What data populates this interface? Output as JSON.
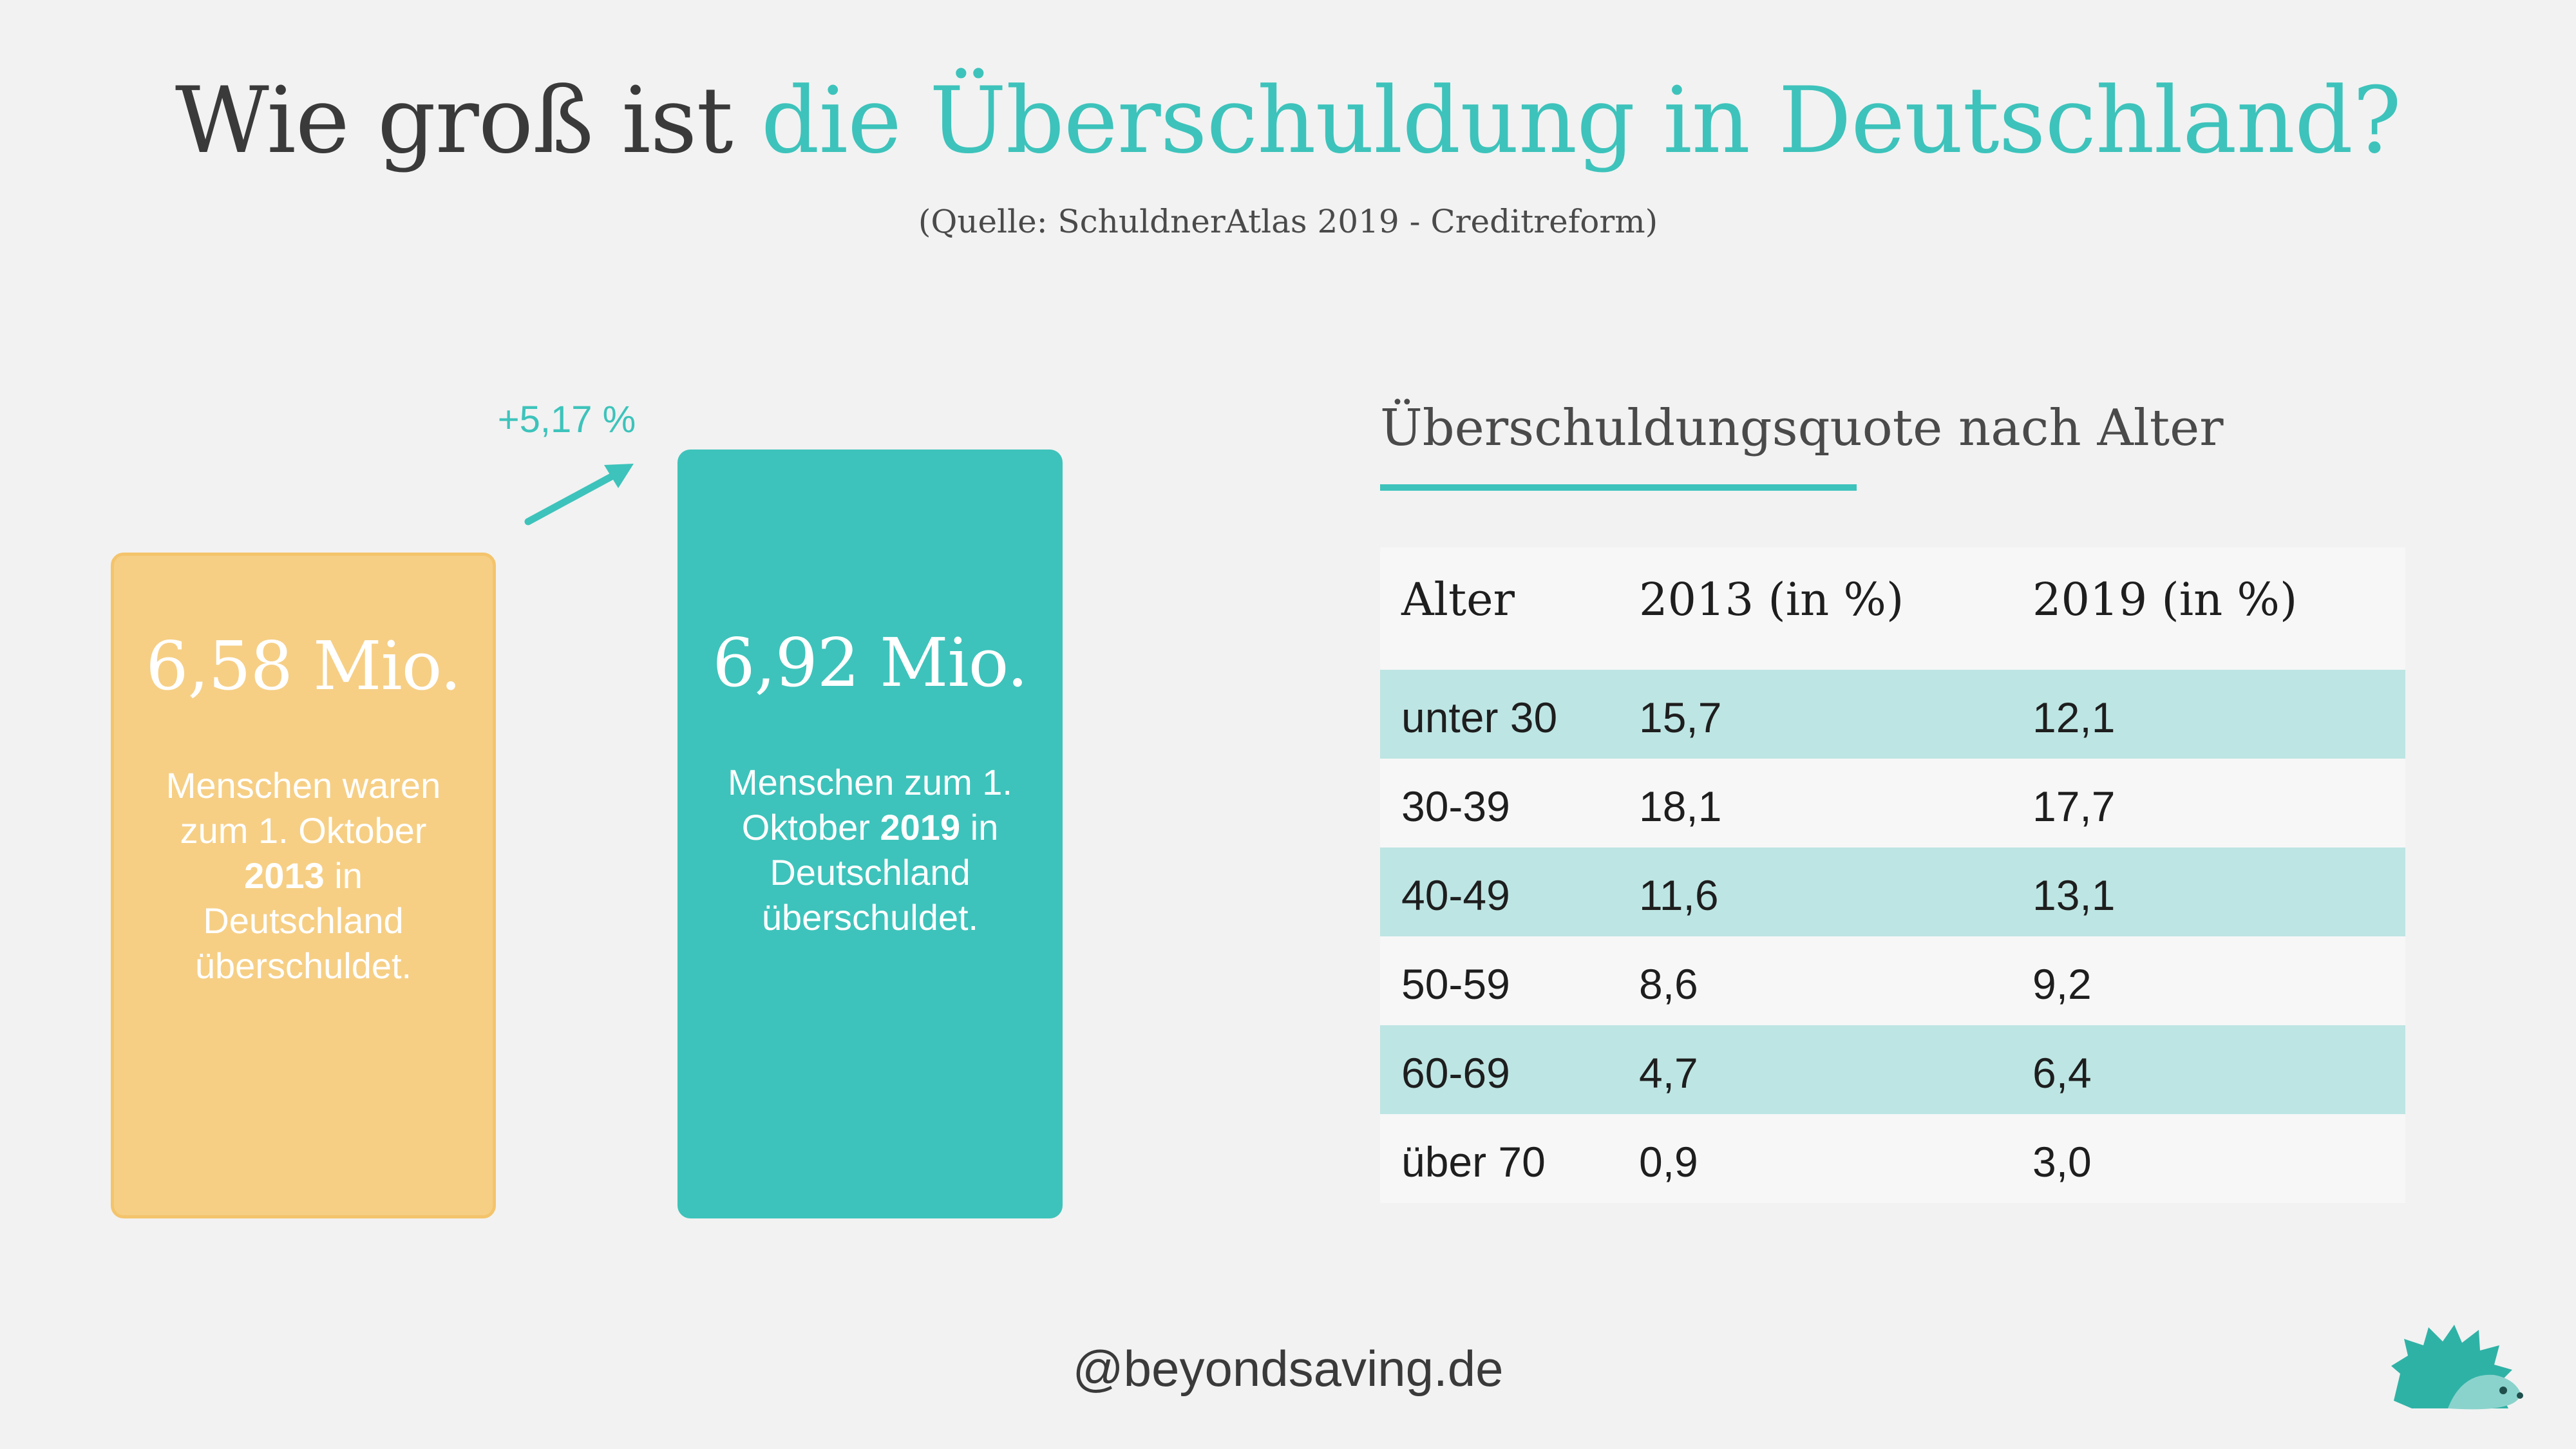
{
  "title": {
    "part1": "Wie groß ist ",
    "part2": "die Überschuldung in Deutschland?"
  },
  "source": "(Quelle: SchuldnerAtlas 2019 - Creditreform)",
  "colors": {
    "accent": "#3dc3bb",
    "card_2013": "#f6cf85",
    "row_highlight": "#bde5e3",
    "text": "#3a3a3a"
  },
  "comparison": {
    "change_label": "+5,17 %",
    "card_2013": {
      "value": "6,58 Mio.",
      "desc_a": "Menschen waren zum 1. Oktober",
      "desc_year": "2013",
      "desc_b": "in Deutschland überschuldet."
    },
    "card_2019": {
      "value": "6,92 Mio.",
      "desc_a": "Menschen zum 1. Oktober",
      "desc_year": "2019",
      "desc_b": "in Deutschland überschuldet."
    }
  },
  "chart_data": [
    {
      "type": "bar",
      "categories": [
        "2013",
        "2019"
      ],
      "values": [
        6.58,
        6.92
      ],
      "value_labels": [
        "6,58 Mio.",
        "6,92 Mio."
      ],
      "annotation": "+5,17 %"
    },
    {
      "type": "table",
      "title": "Überschuldungsquote nach Alter",
      "columns": [
        "Alter",
        "2013 (in %)",
        "2019 (in %)"
      ],
      "rows": [
        [
          "unter 30",
          "15,7",
          "12,1"
        ],
        [
          "30-39",
          "18,1",
          "17,7"
        ],
        [
          "40-49",
          "11,6",
          "13,1"
        ],
        [
          "50-59",
          "8,6",
          "9,2"
        ],
        [
          "60-69",
          "4,7",
          "6,4"
        ],
        [
          "über 70",
          "0,9",
          "3,0"
        ]
      ]
    }
  ],
  "footer": "@beyondsaving.de",
  "logo": {
    "icon": "hedgehog-icon"
  }
}
